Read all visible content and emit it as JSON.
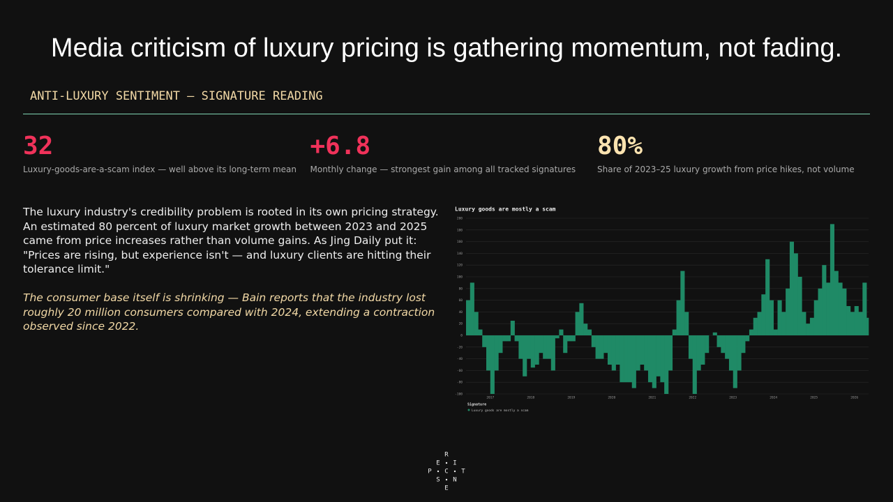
{
  "header": {
    "title": "Media criticism of luxury pricing is gathering momentum, not fading.",
    "kicker": "ANTI-LUXURY SENTIMENT — SIGNATURE READING"
  },
  "stats": [
    {
      "value": "32",
      "caption": "Luxury-goods-are-a-scam index — well above its long-term mean",
      "color": "#f0325a"
    },
    {
      "value": "+6.8",
      "caption": "Monthly change — strongest gain among all tracked signatures",
      "color": "#f0325a"
    },
    {
      "value": "80%",
      "caption": "Share of 2023–25 luxury growth from price hikes, not volume",
      "color": "#fbe3b0"
    }
  ],
  "body": {
    "paragraph": "The luxury industry's credibility problem is rooted in its own pricing strategy. An estimated 80 percent of luxury market growth between 2023 and 2025 came from price increases rather than volume gains. As Jing Daily put it: \"Prices are rising, but experience isn't — and luxury clients are hitting their tolerance limit.\"",
    "quote": "The consumer base itself is shrinking — Bain reports that the industry lost roughly 20 million consumers compared with 2024, extending a contraction observed since 2022."
  },
  "chart_data": {
    "type": "area",
    "title": "Luxury goods are mostly a scam",
    "legend_title": "Signature",
    "x": [
      2016.4,
      2016.5,
      2016.6,
      2016.7,
      2016.8,
      2016.9,
      2017.0,
      2017.1,
      2017.2,
      2017.3,
      2017.4,
      2017.5,
      2017.6,
      2017.7,
      2017.8,
      2017.9,
      2018.0,
      2018.1,
      2018.2,
      2018.3,
      2018.4,
      2018.5,
      2018.6,
      2018.7,
      2018.8,
      2018.9,
      2019.0,
      2019.1,
      2019.2,
      2019.3,
      2019.4,
      2019.5,
      2019.6,
      2019.7,
      2019.8,
      2019.9,
      2020.0,
      2020.1,
      2020.2,
      2020.3,
      2020.4,
      2020.5,
      2020.6,
      2020.7,
      2020.8,
      2020.9,
      2021.0,
      2021.1,
      2021.2,
      2021.3,
      2021.4,
      2021.5,
      2021.6,
      2021.7,
      2021.8,
      2021.9,
      2022.0,
      2022.1,
      2022.2,
      2022.3,
      2022.4,
      2022.5,
      2022.6,
      2022.7,
      2022.8,
      2022.9,
      2023.0,
      2023.1,
      2023.2,
      2023.3,
      2023.4,
      2023.5,
      2023.6,
      2023.7,
      2023.8,
      2023.9,
      2024.0,
      2024.1,
      2024.2,
      2024.3,
      2024.4,
      2024.5,
      2024.6,
      2024.7,
      2024.8,
      2024.9,
      2025.0,
      2025.1,
      2025.2,
      2025.3,
      2025.4,
      2025.5,
      2025.6,
      2025.7,
      2025.8,
      2025.9,
      2026.0,
      2026.1,
      2026.2,
      2026.3
    ],
    "series": [
      {
        "name": "Luxury goods are mostly a scam",
        "color": "#1f8a66",
        "values": [
          60,
          90,
          40,
          10,
          -20,
          -60,
          -100,
          -60,
          -30,
          -10,
          -10,
          25,
          -10,
          -40,
          -70,
          -40,
          -55,
          -50,
          -30,
          -40,
          -40,
          -60,
          -5,
          10,
          -30,
          -10,
          -10,
          40,
          55,
          20,
          10,
          -20,
          -40,
          -40,
          -30,
          -50,
          -60,
          -50,
          -80,
          -80,
          -80,
          -90,
          -60,
          -50,
          -60,
          -80,
          -90,
          -70,
          -80,
          -100,
          -60,
          10,
          60,
          110,
          40,
          -40,
          -100,
          -60,
          -50,
          -30,
          0,
          5,
          -20,
          -30,
          -40,
          -60,
          -90,
          -60,
          -30,
          -10,
          10,
          30,
          40,
          70,
          130,
          60,
          10,
          60,
          40,
          80,
          160,
          140,
          100,
          40,
          20,
          30,
          60,
          80,
          120,
          90,
          190,
          110,
          90,
          80,
          50,
          40,
          50,
          40,
          90,
          30
        ]
      }
    ],
    "xlim": [
      2016.4,
      2026.35
    ],
    "xticks": [
      2017,
      2018,
      2019,
      2020,
      2021,
      2022,
      2023,
      2024,
      2025,
      2026
    ],
    "ylim": [
      -100,
      200
    ],
    "yticks": [
      -100,
      -80,
      -60,
      -40,
      -20,
      0,
      20,
      40,
      60,
      80,
      100,
      120,
      140,
      160,
      180,
      200
    ],
    "grid": true
  },
  "logo": {
    "letters": [
      "R",
      "E",
      "I",
      "P",
      "C",
      "T",
      "S",
      "N",
      "E"
    ]
  }
}
